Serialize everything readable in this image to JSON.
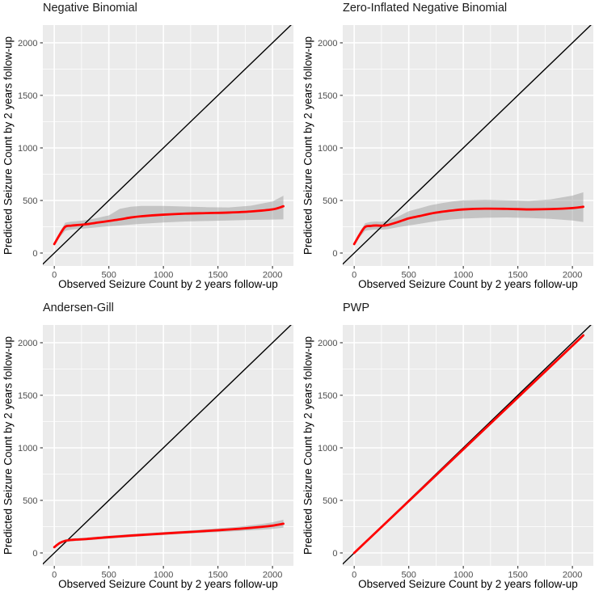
{
  "colors": {
    "panel_bg": "#EBEBEB",
    "grid": "#FFFFFF",
    "smooth_line": "#FF0000",
    "identity_line": "#000000",
    "band_fill": "#9E9E9E",
    "axis_text": "#4D4D4D",
    "tick_mark": "#333333",
    "title_text": "#1A1A1A"
  },
  "chart_data": [
    {
      "type": "line",
      "title": "Negative Binomial",
      "xlabel": "Observed Seizure Count by 2 years follow-up",
      "ylabel": "Predicted Seizure Count by 2 years follow-up",
      "xlim": [
        -105,
        2192
      ],
      "ylim": [
        -123,
        2169
      ],
      "x_ticks": [
        0,
        500,
        1000,
        1500,
        2000
      ],
      "y_ticks": [
        0,
        500,
        1000,
        1500,
        2000
      ],
      "x_minor_ticks": [
        250,
        750,
        1250,
        1750
      ],
      "y_minor_ticks": [
        250,
        750,
        1250,
        1750
      ],
      "identity_line": true,
      "smooth": {
        "x": [
          0,
          50,
          100,
          150,
          200,
          300,
          400,
          500,
          600,
          700,
          800,
          1000,
          1200,
          1400,
          1600,
          1800,
          2000,
          2100
        ],
        "y": [
          85,
          175,
          250,
          260,
          265,
          275,
          290,
          305,
          320,
          338,
          350,
          365,
          375,
          380,
          385,
          395,
          415,
          445
        ]
      },
      "band": {
        "x": [
          0,
          50,
          100,
          150,
          200,
          300,
          400,
          500,
          600,
          700,
          800,
          1000,
          1200,
          1400,
          1600,
          1800,
          2000,
          2100
        ],
        "lower": [
          70,
          150,
          212,
          222,
          228,
          236,
          245,
          255,
          262,
          270,
          278,
          290,
          300,
          305,
          310,
          315,
          318,
          320
        ],
        "upper": [
          100,
          200,
          288,
          298,
          302,
          314,
          335,
          358,
          420,
          440,
          448,
          448,
          442,
          436,
          434,
          450,
          490,
          545
        ]
      }
    },
    {
      "type": "line",
      "title": "Zero-Inflated Negative Binomial",
      "xlabel": "Observed Seizure Count by 2 years follow-up",
      "ylabel": "Predicted Seizure Count by 2 years follow-up",
      "xlim": [
        -105,
        2192
      ],
      "ylim": [
        -123,
        2169
      ],
      "x_ticks": [
        0,
        500,
        1000,
        1500,
        2000
      ],
      "y_ticks": [
        0,
        500,
        1000,
        1500,
        2000
      ],
      "x_minor_ticks": [
        250,
        750,
        1250,
        1750
      ],
      "y_minor_ticks": [
        250,
        750,
        1250,
        1750
      ],
      "identity_line": true,
      "smooth": {
        "x": [
          0,
          50,
          100,
          150,
          200,
          250,
          300,
          400,
          500,
          600,
          700,
          800,
          900,
          1000,
          1200,
          1400,
          1600,
          1800,
          2000,
          2100
        ],
        "y": [
          85,
          175,
          248,
          258,
          262,
          260,
          265,
          295,
          330,
          352,
          375,
          392,
          405,
          415,
          422,
          420,
          415,
          418,
          428,
          440
        ]
      },
      "band": {
        "x": [
          0,
          50,
          100,
          150,
          200,
          250,
          300,
          400,
          500,
          600,
          700,
          800,
          900,
          1000,
          1200,
          1400,
          1600,
          1800,
          2000,
          2100
        ],
        "lower": [
          70,
          150,
          212,
          220,
          224,
          222,
          226,
          245,
          262,
          278,
          295,
          310,
          320,
          328,
          336,
          338,
          334,
          325,
          310,
          295
        ],
        "upper": [
          100,
          200,
          284,
          296,
          300,
          298,
          304,
          345,
          398,
          426,
          455,
          474,
          490,
          502,
          508,
          502,
          496,
          511,
          546,
          578
        ]
      }
    },
    {
      "type": "line",
      "title": "Andersen-Gill",
      "xlabel": "Observed Seizure Count by 2 years follow-up",
      "ylabel": "Predicted Seizure Count by 2 years follow-up",
      "xlim": [
        -105,
        2192
      ],
      "ylim": [
        -123,
        2169
      ],
      "x_ticks": [
        0,
        500,
        1000,
        1500,
        2000
      ],
      "y_ticks": [
        0,
        500,
        1000,
        1500,
        2000
      ],
      "x_minor_ticks": [
        250,
        750,
        1250,
        1750
      ],
      "y_minor_ticks": [
        250,
        750,
        1250,
        1750
      ],
      "identity_line": true,
      "smooth": {
        "x": [
          0,
          50,
          100,
          150,
          200,
          300,
          400,
          500,
          700,
          900,
          1100,
          1300,
          1500,
          1700,
          1900,
          2000,
          2100
        ],
        "y": [
          55,
          95,
          115,
          123,
          127,
          133,
          142,
          150,
          165,
          178,
          191,
          203,
          216,
          230,
          248,
          260,
          278
        ]
      },
      "band": {
        "x": [
          0,
          50,
          100,
          150,
          200,
          300,
          400,
          500,
          700,
          900,
          1100,
          1300,
          1500,
          1700,
          1900,
          2000,
          2100
        ],
        "lower": [
          45,
          82,
          101,
          110,
          114,
          120,
          128,
          136,
          151,
          164,
          177,
          188,
          198,
          209,
          221,
          229,
          240
        ],
        "upper": [
          65,
          108,
          129,
          136,
          140,
          146,
          156,
          164,
          179,
          192,
          205,
          218,
          234,
          251,
          275,
          291,
          316
        ]
      }
    },
    {
      "type": "line",
      "title": "PWP",
      "xlabel": "Observed Seizure Count by 2 years follow-up",
      "ylabel": "Predicted Seizure Count by 2 years follow-up",
      "xlim": [
        -105,
        2192
      ],
      "ylim": [
        -123,
        2169
      ],
      "x_ticks": [
        0,
        500,
        1000,
        1500,
        2000
      ],
      "y_ticks": [
        0,
        500,
        1000,
        1500,
        2000
      ],
      "x_minor_ticks": [
        250,
        750,
        1250,
        1750
      ],
      "y_minor_ticks": [
        250,
        750,
        1250,
        1750
      ],
      "identity_line": true,
      "smooth": {
        "x": [
          0,
          2100
        ],
        "y": [
          0,
          2070
        ]
      },
      "band": null
    }
  ]
}
